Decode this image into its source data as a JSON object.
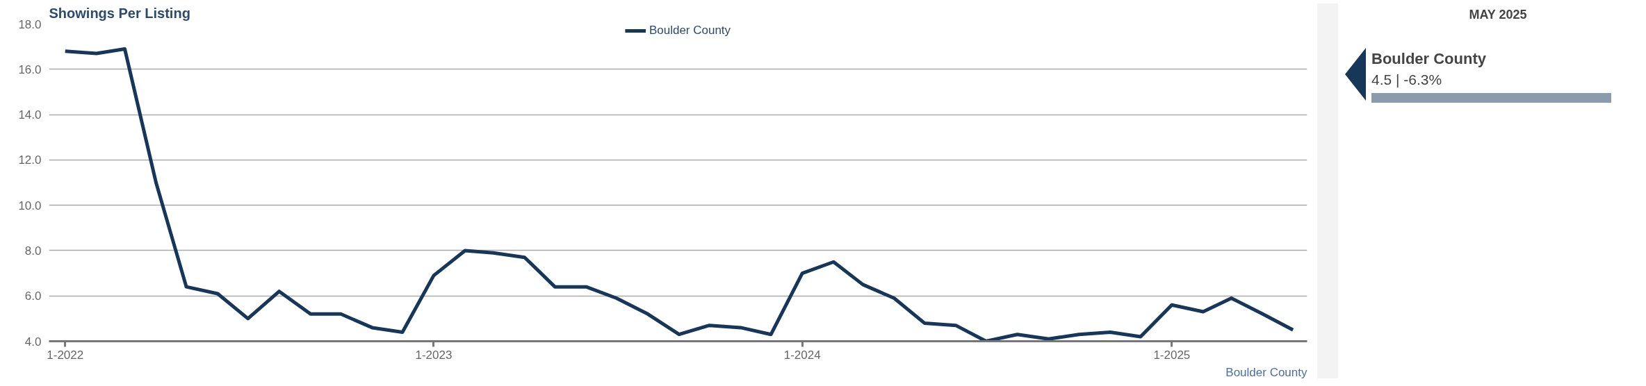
{
  "chart_data": {
    "type": "line",
    "title": "Showings Per Listing",
    "x": [
      "2022-01",
      "2022-02",
      "2022-03",
      "2022-04",
      "2022-05",
      "2022-06",
      "2022-07",
      "2022-08",
      "2022-09",
      "2022-10",
      "2022-11",
      "2022-12",
      "2023-01",
      "2023-02",
      "2023-03",
      "2023-04",
      "2023-05",
      "2023-06",
      "2023-07",
      "2023-08",
      "2023-09",
      "2023-10",
      "2023-11",
      "2023-12",
      "2024-01",
      "2024-02",
      "2024-03",
      "2024-04",
      "2024-05",
      "2024-06",
      "2024-07",
      "2024-08",
      "2024-09",
      "2024-10",
      "2024-11",
      "2024-12",
      "2025-01",
      "2025-02",
      "2025-03",
      "2025-04",
      "2025-05"
    ],
    "series": [
      {
        "name": "Boulder County",
        "color": "#17375a",
        "values": [
          16.8,
          16.7,
          16.9,
          11.0,
          6.4,
          6.1,
          5.0,
          6.2,
          5.2,
          5.2,
          4.6,
          4.4,
          6.9,
          8.0,
          7.9,
          7.7,
          6.4,
          6.4,
          5.9,
          5.2,
          4.3,
          4.7,
          4.6,
          4.3,
          7.0,
          7.5,
          6.5,
          5.9,
          4.8,
          4.7,
          4.0,
          4.3,
          4.1,
          4.3,
          4.4,
          4.2,
          5.6,
          5.3,
          5.9,
          5.2,
          4.5
        ]
      }
    ],
    "xlim": [
      "2021-12-16",
      "2025-05-15"
    ],
    "xticks": [
      {
        "value": "2022-01",
        "label": "1-2022"
      },
      {
        "value": "2023-01",
        "label": "1-2023"
      },
      {
        "value": "2024-01",
        "label": "1-2024"
      },
      {
        "value": "2025-01",
        "label": "1-2025"
      }
    ],
    "ylim": [
      4,
      18
    ],
    "yticks": [
      {
        "value": 4,
        "label": "4.0"
      },
      {
        "value": 6,
        "label": "6.0"
      },
      {
        "value": 8,
        "label": "8.0"
      },
      {
        "value": 10,
        "label": "10.0"
      },
      {
        "value": 12,
        "label": "12.0"
      },
      {
        "value": 14,
        "label": "14.0"
      },
      {
        "value": 16,
        "label": "16.0"
      },
      {
        "value": 18,
        "label": "18.0"
      }
    ],
    "grid": "y",
    "legend": "top",
    "line_style": "solid",
    "annotations": [
      "Boulder County",
      "MAY 2025",
      "Boulder County",
      "4.5 | -6.3%"
    ]
  }
}
